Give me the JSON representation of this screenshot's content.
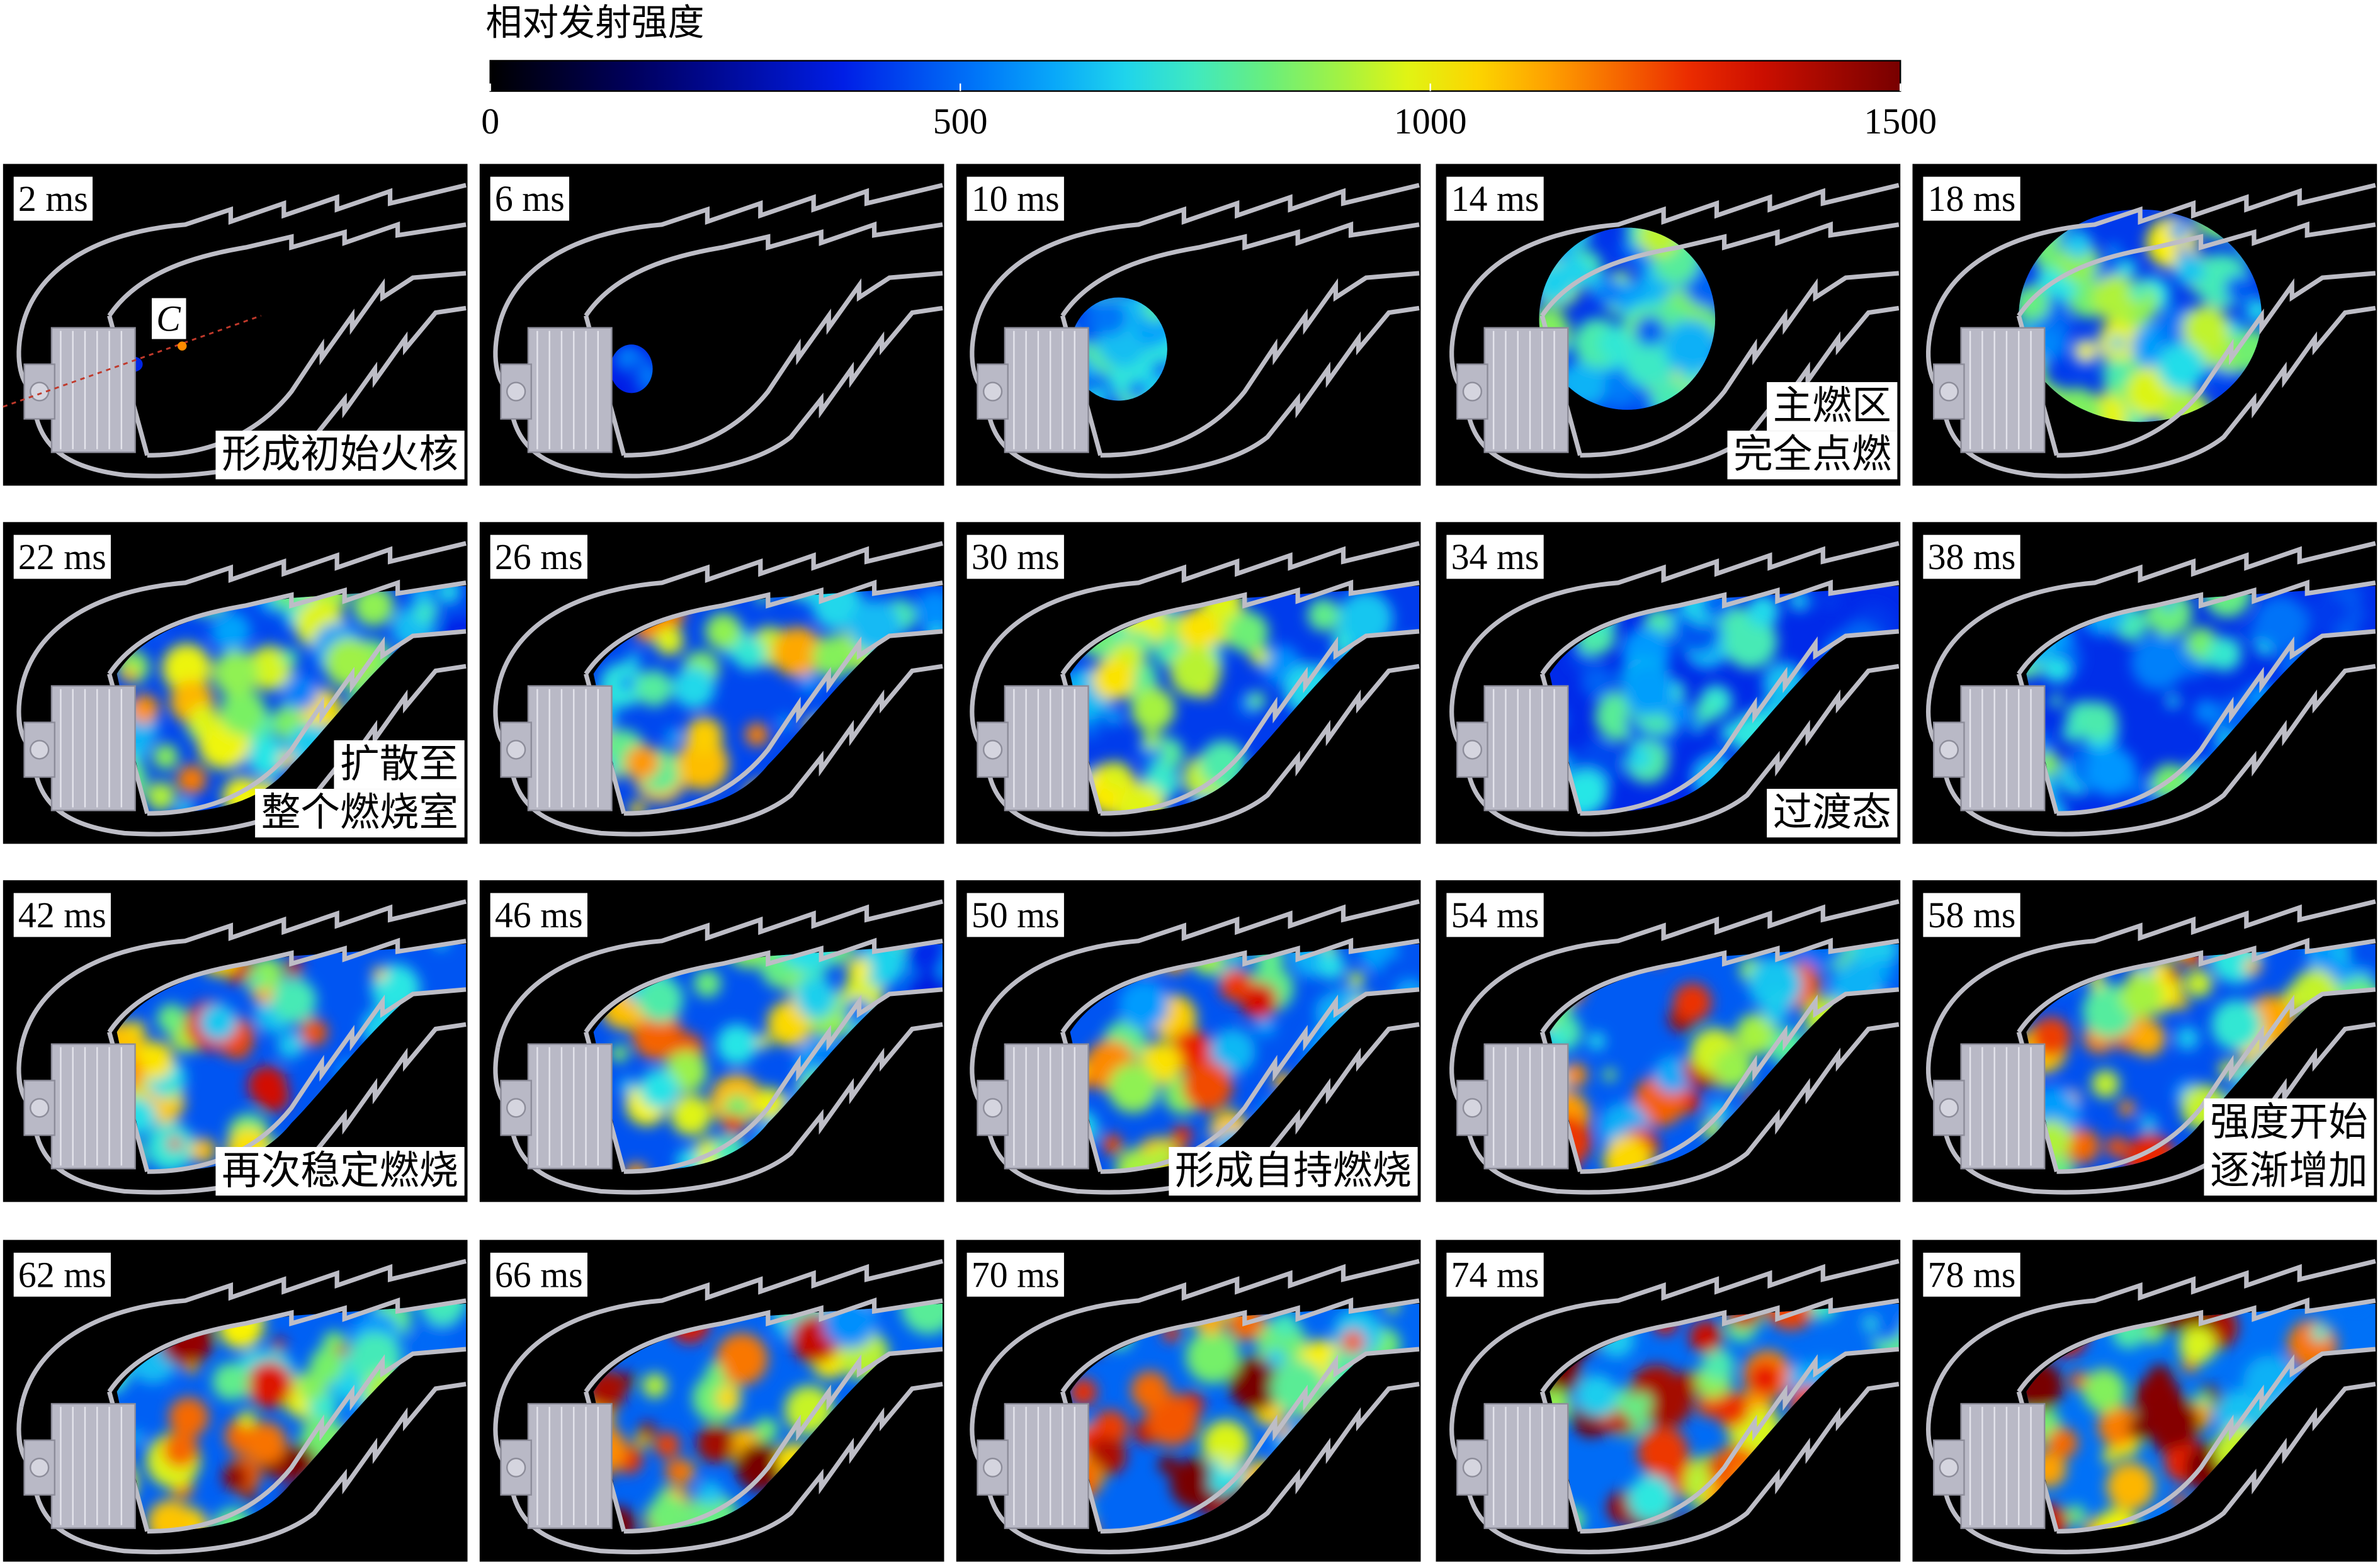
{
  "colorbar": {
    "title": "相对发射强度",
    "range": [
      0,
      1500
    ],
    "ticks": [
      0,
      500,
      1000,
      1500
    ]
  },
  "panels": [
    {
      "time": "2 ms",
      "marker": "C",
      "annotation": [
        "形成初始火核"
      ]
    },
    {
      "time": "6 ms"
    },
    {
      "time": "10 ms"
    },
    {
      "time": "14 ms",
      "annotation": [
        "主燃区",
        "完全点燃"
      ]
    },
    {
      "time": "18 ms"
    },
    {
      "time": "22 ms",
      "annotation": [
        "扩散至",
        "整个燃烧室"
      ]
    },
    {
      "time": "26 ms"
    },
    {
      "time": "30 ms"
    },
    {
      "time": "34 ms",
      "annotation": [
        "过渡态"
      ]
    },
    {
      "time": "38 ms"
    },
    {
      "time": "42 ms",
      "annotation": [
        "再次稳定燃烧"
      ]
    },
    {
      "time": "46 ms"
    },
    {
      "time": "50 ms",
      "annotation": [
        "形成自持燃烧"
      ]
    },
    {
      "time": "54 ms"
    },
    {
      "time": "58 ms",
      "annotation": [
        "强度开始",
        "逐渐增加"
      ]
    },
    {
      "time": "62 ms"
    },
    {
      "time": "66 ms"
    },
    {
      "time": "70 ms"
    },
    {
      "time": "74 ms"
    },
    {
      "time": "78 ms"
    }
  ]
}
